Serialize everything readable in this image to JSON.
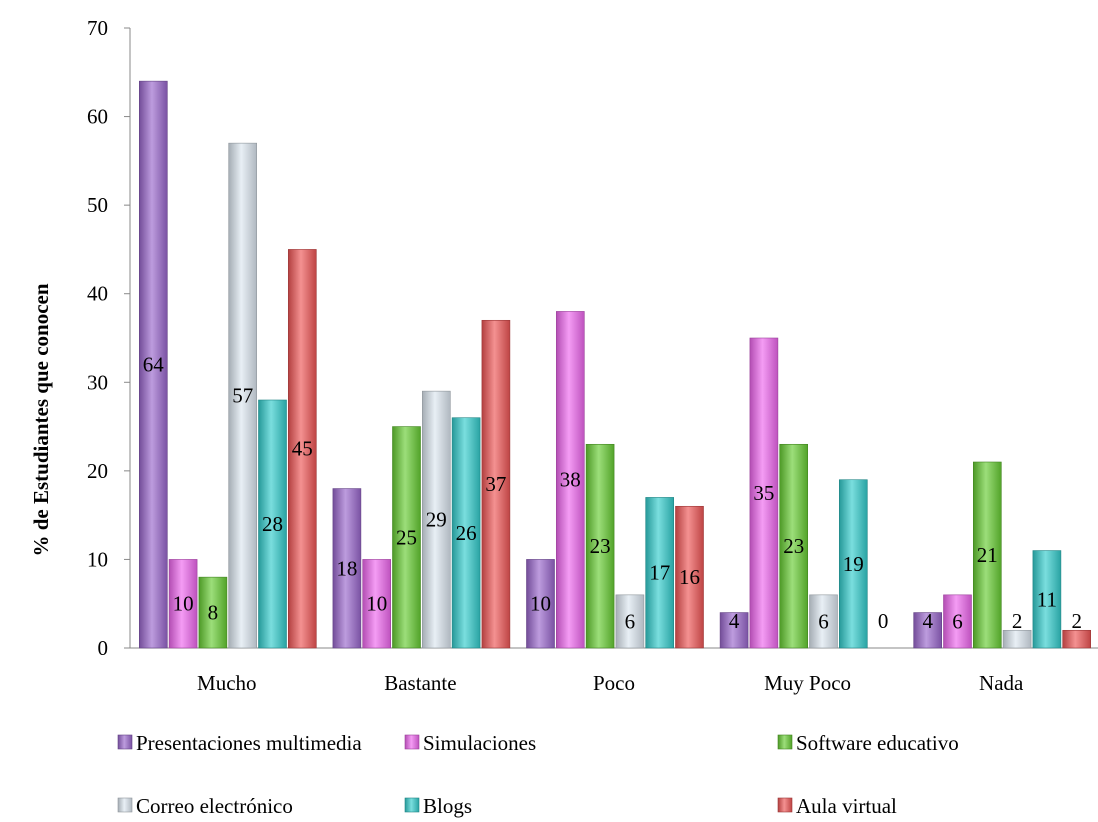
{
  "chart_data": {
    "type": "bar",
    "title": "",
    "xlabel": "",
    "ylabel": "% de Estudiantes que conocen",
    "ylim": [
      0,
      70
    ],
    "yticks": [
      0,
      10,
      20,
      30,
      40,
      50,
      60,
      70
    ],
    "grid": false,
    "legend_position": "bottom",
    "categories": [
      "Mucho",
      "Bastante",
      "Poco",
      "Muy Poco",
      "Nada"
    ],
    "series": [
      {
        "name": "Presentaciones multimedia",
        "color": "#9966CC",
        "values": [
          64,
          18,
          10,
          4,
          4
        ]
      },
      {
        "name": "Simulaciones",
        "color": "#EE66EE",
        "values": [
          10,
          10,
          38,
          35,
          6
        ]
      },
      {
        "name": "Software educativo",
        "color": "#66CC33",
        "values": [
          8,
          25,
          23,
          23,
          21
        ]
      },
      {
        "name": "Correo electrónico",
        "color": "#DCE6F0",
        "values": [
          57,
          29,
          6,
          6,
          2
        ]
      },
      {
        "name": "Blogs",
        "color": "#33CCCC",
        "values": [
          28,
          26,
          17,
          19,
          11
        ]
      },
      {
        "name": "Aula virtual",
        "color": "#EE5555",
        "values": [
          45,
          37,
          16,
          0,
          2
        ]
      }
    ]
  }
}
